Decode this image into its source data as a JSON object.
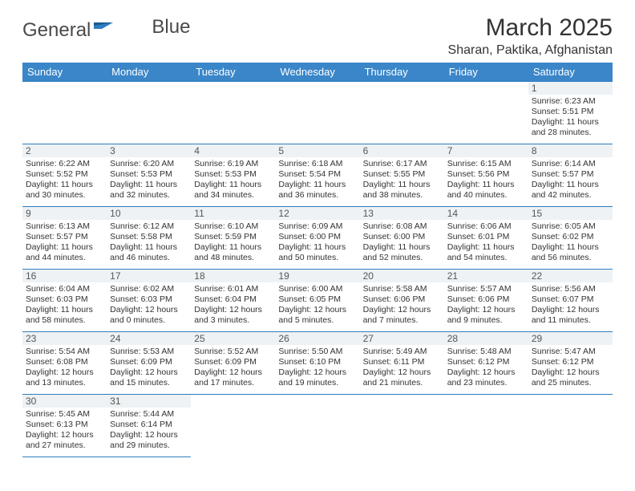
{
  "brand": {
    "name_a": "General",
    "name_b": "Blue"
  },
  "title": "March 2025",
  "location": "Sharan, Paktika, Afghanistan",
  "colors": {
    "header_bg": "#3a86c8",
    "border": "#2d7ec0",
    "daynum_bg": "#eef2f5",
    "text": "#333333",
    "logo_gray": "#4a4a4a",
    "logo_blue": "#2d7ec0"
  },
  "typography": {
    "title_fontsize": 30,
    "location_fontsize": 16,
    "header_fontsize": 13,
    "cell_fontsize": 10.5
  },
  "weekdays": [
    "Sunday",
    "Monday",
    "Tuesday",
    "Wednesday",
    "Thursday",
    "Friday",
    "Saturday"
  ],
  "weeks": [
    [
      null,
      null,
      null,
      null,
      null,
      null,
      {
        "n": "1",
        "sunrise": "Sunrise: 6:23 AM",
        "sunset": "Sunset: 5:51 PM",
        "day1": "Daylight: 11 hours",
        "day2": "and 28 minutes."
      }
    ],
    [
      {
        "n": "2",
        "sunrise": "Sunrise: 6:22 AM",
        "sunset": "Sunset: 5:52 PM",
        "day1": "Daylight: 11 hours",
        "day2": "and 30 minutes."
      },
      {
        "n": "3",
        "sunrise": "Sunrise: 6:20 AM",
        "sunset": "Sunset: 5:53 PM",
        "day1": "Daylight: 11 hours",
        "day2": "and 32 minutes."
      },
      {
        "n": "4",
        "sunrise": "Sunrise: 6:19 AM",
        "sunset": "Sunset: 5:53 PM",
        "day1": "Daylight: 11 hours",
        "day2": "and 34 minutes."
      },
      {
        "n": "5",
        "sunrise": "Sunrise: 6:18 AM",
        "sunset": "Sunset: 5:54 PM",
        "day1": "Daylight: 11 hours",
        "day2": "and 36 minutes."
      },
      {
        "n": "6",
        "sunrise": "Sunrise: 6:17 AM",
        "sunset": "Sunset: 5:55 PM",
        "day1": "Daylight: 11 hours",
        "day2": "and 38 minutes."
      },
      {
        "n": "7",
        "sunrise": "Sunrise: 6:15 AM",
        "sunset": "Sunset: 5:56 PM",
        "day1": "Daylight: 11 hours",
        "day2": "and 40 minutes."
      },
      {
        "n": "8",
        "sunrise": "Sunrise: 6:14 AM",
        "sunset": "Sunset: 5:57 PM",
        "day1": "Daylight: 11 hours",
        "day2": "and 42 minutes."
      }
    ],
    [
      {
        "n": "9",
        "sunrise": "Sunrise: 6:13 AM",
        "sunset": "Sunset: 5:57 PM",
        "day1": "Daylight: 11 hours",
        "day2": "and 44 minutes."
      },
      {
        "n": "10",
        "sunrise": "Sunrise: 6:12 AM",
        "sunset": "Sunset: 5:58 PM",
        "day1": "Daylight: 11 hours",
        "day2": "and 46 minutes."
      },
      {
        "n": "11",
        "sunrise": "Sunrise: 6:10 AM",
        "sunset": "Sunset: 5:59 PM",
        "day1": "Daylight: 11 hours",
        "day2": "and 48 minutes."
      },
      {
        "n": "12",
        "sunrise": "Sunrise: 6:09 AM",
        "sunset": "Sunset: 6:00 PM",
        "day1": "Daylight: 11 hours",
        "day2": "and 50 minutes."
      },
      {
        "n": "13",
        "sunrise": "Sunrise: 6:08 AM",
        "sunset": "Sunset: 6:00 PM",
        "day1": "Daylight: 11 hours",
        "day2": "and 52 minutes."
      },
      {
        "n": "14",
        "sunrise": "Sunrise: 6:06 AM",
        "sunset": "Sunset: 6:01 PM",
        "day1": "Daylight: 11 hours",
        "day2": "and 54 minutes."
      },
      {
        "n": "15",
        "sunrise": "Sunrise: 6:05 AM",
        "sunset": "Sunset: 6:02 PM",
        "day1": "Daylight: 11 hours",
        "day2": "and 56 minutes."
      }
    ],
    [
      {
        "n": "16",
        "sunrise": "Sunrise: 6:04 AM",
        "sunset": "Sunset: 6:03 PM",
        "day1": "Daylight: 11 hours",
        "day2": "and 58 minutes."
      },
      {
        "n": "17",
        "sunrise": "Sunrise: 6:02 AM",
        "sunset": "Sunset: 6:03 PM",
        "day1": "Daylight: 12 hours",
        "day2": "and 0 minutes."
      },
      {
        "n": "18",
        "sunrise": "Sunrise: 6:01 AM",
        "sunset": "Sunset: 6:04 PM",
        "day1": "Daylight: 12 hours",
        "day2": "and 3 minutes."
      },
      {
        "n": "19",
        "sunrise": "Sunrise: 6:00 AM",
        "sunset": "Sunset: 6:05 PM",
        "day1": "Daylight: 12 hours",
        "day2": "and 5 minutes."
      },
      {
        "n": "20",
        "sunrise": "Sunrise: 5:58 AM",
        "sunset": "Sunset: 6:06 PM",
        "day1": "Daylight: 12 hours",
        "day2": "and 7 minutes."
      },
      {
        "n": "21",
        "sunrise": "Sunrise: 5:57 AM",
        "sunset": "Sunset: 6:06 PM",
        "day1": "Daylight: 12 hours",
        "day2": "and 9 minutes."
      },
      {
        "n": "22",
        "sunrise": "Sunrise: 5:56 AM",
        "sunset": "Sunset: 6:07 PM",
        "day1": "Daylight: 12 hours",
        "day2": "and 11 minutes."
      }
    ],
    [
      {
        "n": "23",
        "sunrise": "Sunrise: 5:54 AM",
        "sunset": "Sunset: 6:08 PM",
        "day1": "Daylight: 12 hours",
        "day2": "and 13 minutes."
      },
      {
        "n": "24",
        "sunrise": "Sunrise: 5:53 AM",
        "sunset": "Sunset: 6:09 PM",
        "day1": "Daylight: 12 hours",
        "day2": "and 15 minutes."
      },
      {
        "n": "25",
        "sunrise": "Sunrise: 5:52 AM",
        "sunset": "Sunset: 6:09 PM",
        "day1": "Daylight: 12 hours",
        "day2": "and 17 minutes."
      },
      {
        "n": "26",
        "sunrise": "Sunrise: 5:50 AM",
        "sunset": "Sunset: 6:10 PM",
        "day1": "Daylight: 12 hours",
        "day2": "and 19 minutes."
      },
      {
        "n": "27",
        "sunrise": "Sunrise: 5:49 AM",
        "sunset": "Sunset: 6:11 PM",
        "day1": "Daylight: 12 hours",
        "day2": "and 21 minutes."
      },
      {
        "n": "28",
        "sunrise": "Sunrise: 5:48 AM",
        "sunset": "Sunset: 6:12 PM",
        "day1": "Daylight: 12 hours",
        "day2": "and 23 minutes."
      },
      {
        "n": "29",
        "sunrise": "Sunrise: 5:47 AM",
        "sunset": "Sunset: 6:12 PM",
        "day1": "Daylight: 12 hours",
        "day2": "and 25 minutes."
      }
    ],
    [
      {
        "n": "30",
        "sunrise": "Sunrise: 5:45 AM",
        "sunset": "Sunset: 6:13 PM",
        "day1": "Daylight: 12 hours",
        "day2": "and 27 minutes."
      },
      {
        "n": "31",
        "sunrise": "Sunrise: 5:44 AM",
        "sunset": "Sunset: 6:14 PM",
        "day1": "Daylight: 12 hours",
        "day2": "and 29 minutes."
      },
      null,
      null,
      null,
      null,
      null
    ]
  ]
}
